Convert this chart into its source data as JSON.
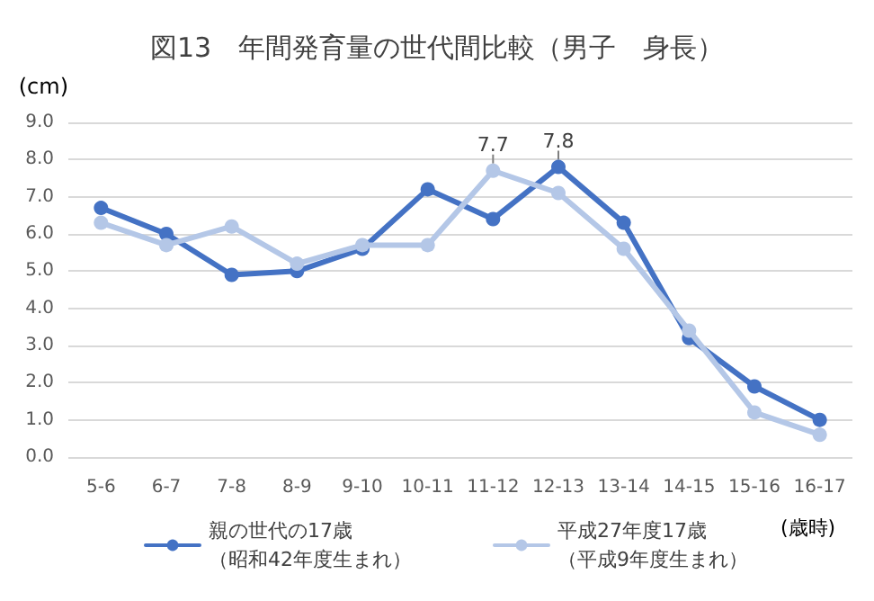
{
  "chart_data": {
    "type": "line",
    "title": "図13　年間発育量の世代間比較（男子　身長）",
    "ylabel": "(cm)",
    "xlabel": "(歳時)",
    "categories": [
      "5-6",
      "6-7",
      "7-8",
      "8-9",
      "9-10",
      "10-11",
      "11-12",
      "12-13",
      "13-14",
      "14-15",
      "15-16",
      "16-17"
    ],
    "series": [
      {
        "name": "親の世代の17歳（昭和42年度生まれ）",
        "color": "#4472c4",
        "values": [
          6.7,
          6.0,
          4.9,
          5.0,
          5.6,
          7.2,
          6.4,
          7.8,
          6.3,
          3.2,
          1.9,
          1.0
        ],
        "value_labels": [
          null,
          null,
          null,
          null,
          null,
          null,
          null,
          "7.8",
          null,
          null,
          null,
          null
        ]
      },
      {
        "name": "平成27年度17歳（平成9年度生まれ）",
        "color": "#b4c7e7",
        "values": [
          6.3,
          5.7,
          6.2,
          5.2,
          5.7,
          5.7,
          7.7,
          7.1,
          5.6,
          3.4,
          1.2,
          0.6
        ],
        "value_labels": [
          null,
          null,
          null,
          null,
          null,
          null,
          "7.7",
          null,
          null,
          null,
          null,
          null
        ]
      }
    ],
    "ylim": [
      0,
      9
    ],
    "yticks": [
      {
        "value": 0,
        "label": "0.0"
      },
      {
        "value": 1,
        "label": "1.0"
      },
      {
        "value": 2,
        "label": "2.0"
      },
      {
        "value": 3,
        "label": "3.0"
      },
      {
        "value": 4,
        "label": "4.0"
      },
      {
        "value": 5,
        "label": "5.0"
      },
      {
        "value": 6,
        "label": "6.0"
      },
      {
        "value": 7,
        "label": "7.0"
      },
      {
        "value": 8,
        "label": "8.0"
      },
      {
        "value": 9,
        "label": "9.0"
      }
    ],
    "grid": "y",
    "legend": "bottom",
    "marker": "circle",
    "line_style": "solid"
  }
}
